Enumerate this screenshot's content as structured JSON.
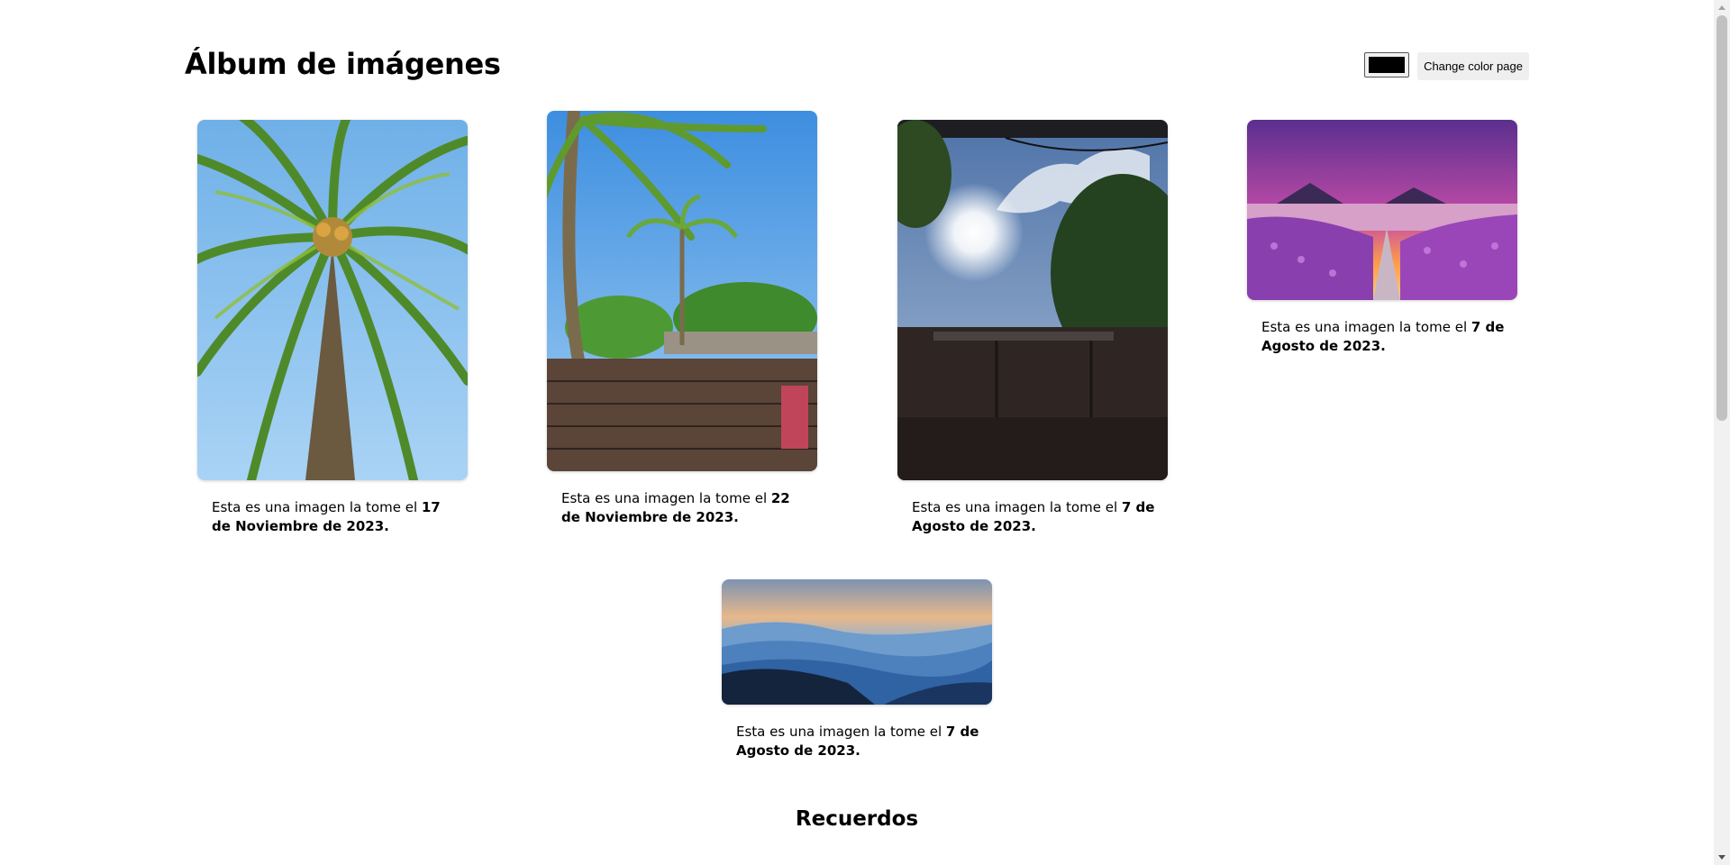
{
  "page": {
    "title": "Álbum de imágenes",
    "section_title": "Recuerdos"
  },
  "controls": {
    "color_value": "#000000",
    "change_color_label": "Change color page"
  },
  "gallery": [
    {
      "caption_prefix": "Esta es una imagen la tome el ",
      "caption_date": "17 de Noviembre de 2023.",
      "image": "palm-tree-from-below"
    },
    {
      "caption_prefix": "Esta es una imagen la tome el ",
      "caption_date": "22 de Noviembre de 2023.",
      "image": "palm-and-brick-wall"
    },
    {
      "caption_prefix": "Esta es una imagen la tome el ",
      "caption_date": "7 de Agosto de 2023.",
      "image": "sun-over-backyard"
    },
    {
      "caption_prefix": "Esta es una imagen la tome el ",
      "caption_date": "7 de Agosto de 2023.",
      "image": "lake-with-purple-flowers"
    },
    {
      "caption_prefix": "Esta es una imagen la tome el ",
      "caption_date": "7 de Agosto de 2023.",
      "image": "blue-mountain-ridges"
    }
  ]
}
